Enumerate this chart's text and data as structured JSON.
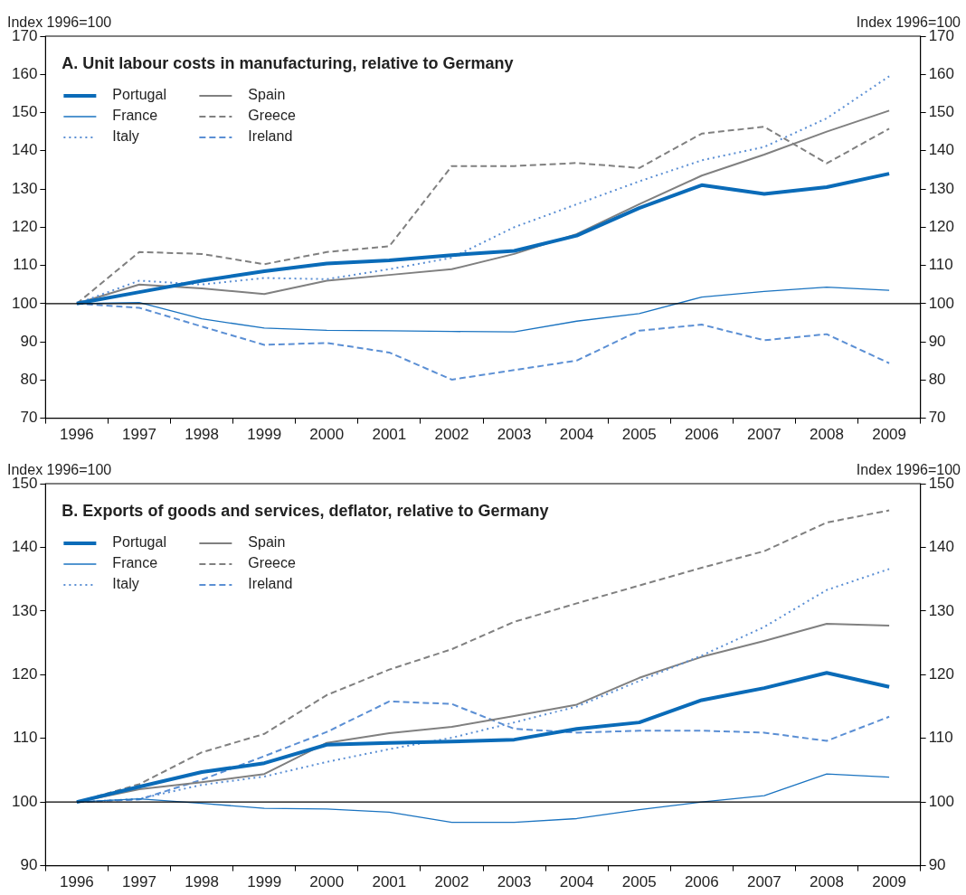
{
  "chart_data": [
    {
      "type": "line",
      "title": "A. Unit labour costs in manufacturing, relative to Germany",
      "ylabel": "Index 1996=100",
      "y2label": "Index 1996=100",
      "categories": [
        "1996",
        "1997",
        "1998",
        "1999",
        "2000",
        "2001",
        "2002",
        "2003",
        "2004",
        "2005",
        "2006",
        "2007",
        "2008",
        "2009"
      ],
      "ylim": [
        70,
        170
      ],
      "yticks": [
        70,
        80,
        90,
        100,
        110,
        120,
        130,
        140,
        150,
        160,
        170
      ],
      "y2lim": [
        70,
        170
      ],
      "y2ticks": [
        70,
        80,
        90,
        100,
        110,
        120,
        130,
        140,
        150,
        160,
        170
      ],
      "grid": false,
      "legend": "top left",
      "marker": "none",
      "ref_lines": [
        {
          "axis": "y",
          "value": 100,
          "color": "#000000"
        }
      ],
      "series": [
        {
          "name": "Portugal",
          "color": "#0a6bb8",
          "line_style": "solid",
          "values": [
            100,
            103,
            106,
            108.5,
            110.5,
            111.3,
            112.7,
            113.8,
            117.8,
            125,
            131,
            128.7,
            130.5,
            134
          ]
        },
        {
          "name": "France",
          "color": "#1a73c0",
          "line_style": "solid",
          "values": [
            100,
            100.3,
            96,
            93.6,
            93,
            92.9,
            92.7,
            92.6,
            95.4,
            97.4,
            101.7,
            103.2,
            104.3,
            103.5
          ]
        },
        {
          "name": "Italy",
          "color": "#5b8fd4",
          "line_style": "dotted",
          "values": [
            100,
            106,
            105,
            106.7,
            106.4,
            109,
            112,
            120,
            126,
            132,
            137.5,
            141,
            148.5,
            159.5
          ]
        },
        {
          "name": "Spain",
          "color": "#808080",
          "line_style": "solid",
          "values": [
            100,
            105,
            104,
            102.5,
            106,
            107.5,
            109,
            113,
            118.2,
            126,
            133.5,
            139,
            145,
            150.5
          ]
        },
        {
          "name": "Greece",
          "color": "#808080",
          "line_style": "dashed",
          "values": [
            100,
            113.5,
            113,
            110.3,
            113.5,
            115,
            136,
            136,
            136.8,
            135.5,
            144.5,
            146.3,
            136.7,
            145.8
          ]
        },
        {
          "name": "Ireland",
          "color": "#5b8fd4",
          "line_style": "dashed",
          "values": [
            100,
            98.9,
            94,
            89.2,
            89.7,
            87.2,
            80.1,
            82.6,
            85.1,
            92.9,
            94.5,
            90.4,
            92,
            84.4
          ]
        }
      ]
    },
    {
      "type": "line",
      "title": "B. Exports of goods and services, deflator, relative to Germany",
      "ylabel": "Index 1996=100",
      "y2label": "Index 1996=100",
      "categories": [
        "1996",
        "1997",
        "1998",
        "1999",
        "2000",
        "2001",
        "2002",
        "2003",
        "2004",
        "2005",
        "2006",
        "2007",
        "2008",
        "2009"
      ],
      "ylim": [
        90,
        150
      ],
      "yticks": [
        90,
        100,
        110,
        120,
        130,
        140,
        150
      ],
      "y2lim": [
        90,
        150
      ],
      "y2ticks": [
        90,
        100,
        110,
        120,
        130,
        140,
        150
      ],
      "grid": false,
      "legend": "top left",
      "marker": "none",
      "ref_lines": [
        {
          "axis": "y",
          "value": 100,
          "color": "#000000"
        }
      ],
      "series": [
        {
          "name": "Portugal",
          "color": "#0a6bb8",
          "line_style": "solid",
          "values": [
            100,
            102.4,
            104.7,
            106.1,
            109,
            109.3,
            109.5,
            109.8,
            111.5,
            112.5,
            116,
            117.9,
            120.3,
            118.1
          ]
        },
        {
          "name": "France",
          "color": "#1a73c0",
          "line_style": "solid",
          "values": [
            100,
            100.5,
            99.8,
            99,
            98.9,
            98.4,
            96.8,
            96.8,
            97.4,
            98.8,
            100,
            101,
            104.4,
            103.9
          ]
        },
        {
          "name": "Italy",
          "color": "#5b8fd4",
          "line_style": "dotted",
          "values": [
            100,
            100.5,
            102.7,
            104,
            106.3,
            108.3,
            110.1,
            112.5,
            115,
            119,
            123,
            127.5,
            133.3,
            136.6
          ]
        },
        {
          "name": "Spain",
          "color": "#808080",
          "line_style": "solid",
          "values": [
            100,
            102,
            103.1,
            104.4,
            109.3,
            110.8,
            111.8,
            113.5,
            115.3,
            119.5,
            122.8,
            125.3,
            128,
            127.7
          ]
        },
        {
          "name": "Greece",
          "color": "#808080",
          "line_style": "dashed",
          "values": [
            100,
            102.8,
            107.8,
            110.7,
            116.8,
            120.8,
            124,
            128.3,
            131.2,
            134,
            136.8,
            139.4,
            143.9,
            145.8
          ]
        },
        {
          "name": "Ireland",
          "color": "#5b8fd4",
          "line_style": "dashed",
          "values": [
            100,
            100.4,
            103.5,
            107.2,
            111,
            115.8,
            115.4,
            111.5,
            110.9,
            111.2,
            111.2,
            110.9,
            109.6,
            113.4
          ]
        }
      ]
    }
  ]
}
